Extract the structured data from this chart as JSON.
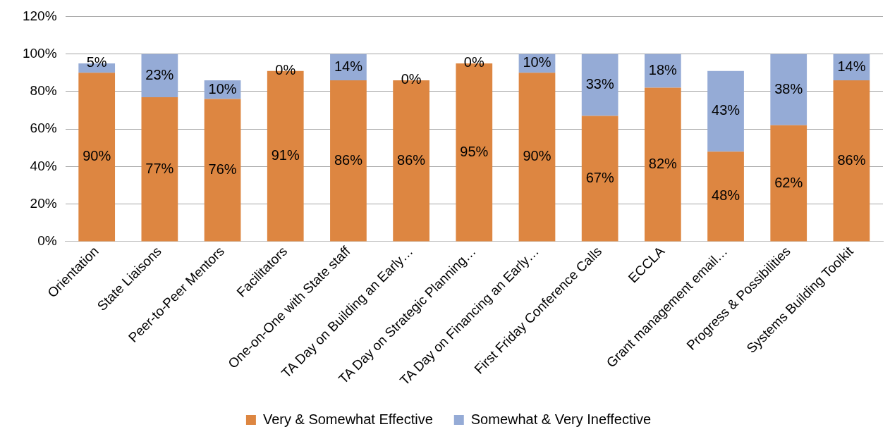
{
  "chart_data": {
    "type": "bar",
    "stacked": true,
    "categories": [
      "Orientation",
      "State Liaisons",
      "Peer-to-Peer Mentors",
      "Facilitators",
      "One-on-One with State staff",
      "TA Day on Building an Early…",
      "TA Day on Strategic Planning…",
      "TA Day on Financing an Early…",
      "First Friday Conference Calls",
      "ECCLA",
      "Grant management email…",
      "Progress & Possibilities",
      "Systems Building Toolkit"
    ],
    "series": [
      {
        "name": "Very & Somewhat Effective",
        "color": "#dd8641",
        "values": [
          90,
          77,
          76,
          91,
          86,
          86,
          95,
          90,
          67,
          82,
          48,
          62,
          86
        ],
        "value_labels": [
          "90%",
          "77%",
          "76%",
          "91%",
          "86%",
          "86%",
          "95%",
          "90%",
          "67%",
          "82%",
          "48%",
          "62%",
          "86%"
        ]
      },
      {
        "name": "Somewhat & Very Ineffective",
        "color": "#95abd6",
        "values": [
          5,
          23,
          10,
          0,
          14,
          0,
          0,
          10,
          33,
          18,
          43,
          38,
          14
        ],
        "value_labels": [
          "5%",
          "23%",
          "10%",
          "0%",
          "14%",
          "0%",
          "0%",
          "10%",
          "33%",
          "18%",
          "43%",
          "38%",
          "14%"
        ]
      }
    ],
    "ylim": [
      0,
      120
    ],
    "yticks": [
      {
        "value": 0,
        "label": "0%"
      },
      {
        "value": 20,
        "label": "20%"
      },
      {
        "value": 40,
        "label": "40%"
      },
      {
        "value": 60,
        "label": "60%"
      },
      {
        "value": 80,
        "label": "80%"
      },
      {
        "value": 100,
        "label": "100%"
      },
      {
        "value": 120,
        "label": "120%"
      }
    ],
    "grid": "y",
    "legend": "bottom"
  }
}
